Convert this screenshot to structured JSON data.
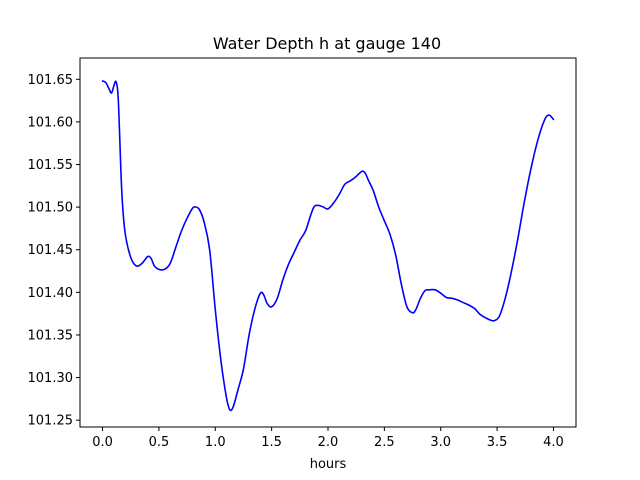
{
  "chart_data": {
    "type": "line",
    "title": "Water Depth h at gauge 140",
    "xlabel": "hours",
    "ylabel": "",
    "xlim": [
      -0.2,
      4.2
    ],
    "ylim": [
      101.242,
      101.675
    ],
    "xticks": [
      0.0,
      0.5,
      1.0,
      1.5,
      2.0,
      2.5,
      3.0,
      3.5,
      4.0
    ],
    "xtick_labels": [
      "0.0",
      "0.5",
      "1.0",
      "1.5",
      "2.0",
      "2.5",
      "3.0",
      "3.5",
      "4.0"
    ],
    "yticks": [
      101.25,
      101.3,
      101.35,
      101.4,
      101.45,
      101.5,
      101.55,
      101.6,
      101.65
    ],
    "ytick_labels": [
      "101.25",
      "101.30",
      "101.35",
      "101.40",
      "101.45",
      "101.50",
      "101.55",
      "101.60",
      "101.65"
    ],
    "grid": false,
    "series": [
      {
        "color": "#0000ff",
        "x": [
          0.0,
          0.03,
          0.06,
          0.08,
          0.1,
          0.12,
          0.14,
          0.17,
          0.2,
          0.25,
          0.3,
          0.35,
          0.4,
          0.43,
          0.46,
          0.5,
          0.55,
          0.6,
          0.65,
          0.7,
          0.75,
          0.8,
          0.83,
          0.86,
          0.9,
          0.95,
          1.0,
          1.05,
          1.1,
          1.13,
          1.16,
          1.2,
          1.25,
          1.3,
          1.35,
          1.4,
          1.43,
          1.46,
          1.5,
          1.55,
          1.6,
          1.65,
          1.7,
          1.75,
          1.8,
          1.85,
          1.88,
          1.92,
          1.96,
          2.0,
          2.05,
          2.1,
          2.15,
          2.2,
          2.25,
          2.3,
          2.33,
          2.36,
          2.4,
          2.45,
          2.5,
          2.55,
          2.6,
          2.65,
          2.7,
          2.75,
          2.78,
          2.82,
          2.86,
          2.9,
          2.95,
          3.0,
          3.05,
          3.1,
          3.15,
          3.2,
          3.25,
          3.3,
          3.35,
          3.4,
          3.45,
          3.48,
          3.52,
          3.57,
          3.62,
          3.68,
          3.74,
          3.8,
          3.86,
          3.92,
          3.96,
          4.0
        ],
        "y": [
          101.648,
          101.646,
          101.638,
          101.634,
          101.642,
          101.647,
          101.625,
          101.52,
          101.47,
          101.441,
          101.431,
          101.434,
          101.442,
          101.44,
          101.431,
          101.427,
          101.427,
          101.434,
          101.453,
          101.472,
          101.487,
          101.499,
          101.5,
          101.497,
          101.483,
          101.45,
          101.38,
          101.32,
          101.276,
          101.262,
          101.266,
          101.285,
          101.31,
          101.35,
          101.38,
          101.399,
          101.397,
          101.387,
          101.383,
          101.393,
          101.415,
          101.433,
          101.447,
          101.461,
          101.472,
          101.492,
          101.501,
          101.502,
          101.5,
          101.498,
          101.505,
          101.515,
          101.527,
          101.531,
          101.536,
          101.542,
          101.54,
          101.531,
          101.52,
          101.5,
          101.484,
          101.468,
          101.444,
          101.41,
          101.383,
          101.376,
          101.38,
          101.393,
          101.402,
          101.403,
          101.403,
          101.399,
          101.394,
          101.393,
          101.391,
          101.388,
          101.385,
          101.381,
          101.374,
          101.37,
          101.367,
          101.367,
          101.372,
          101.392,
          101.42,
          101.46,
          101.505,
          101.545,
          101.578,
          101.602,
          101.608,
          101.603
        ]
      }
    ]
  }
}
